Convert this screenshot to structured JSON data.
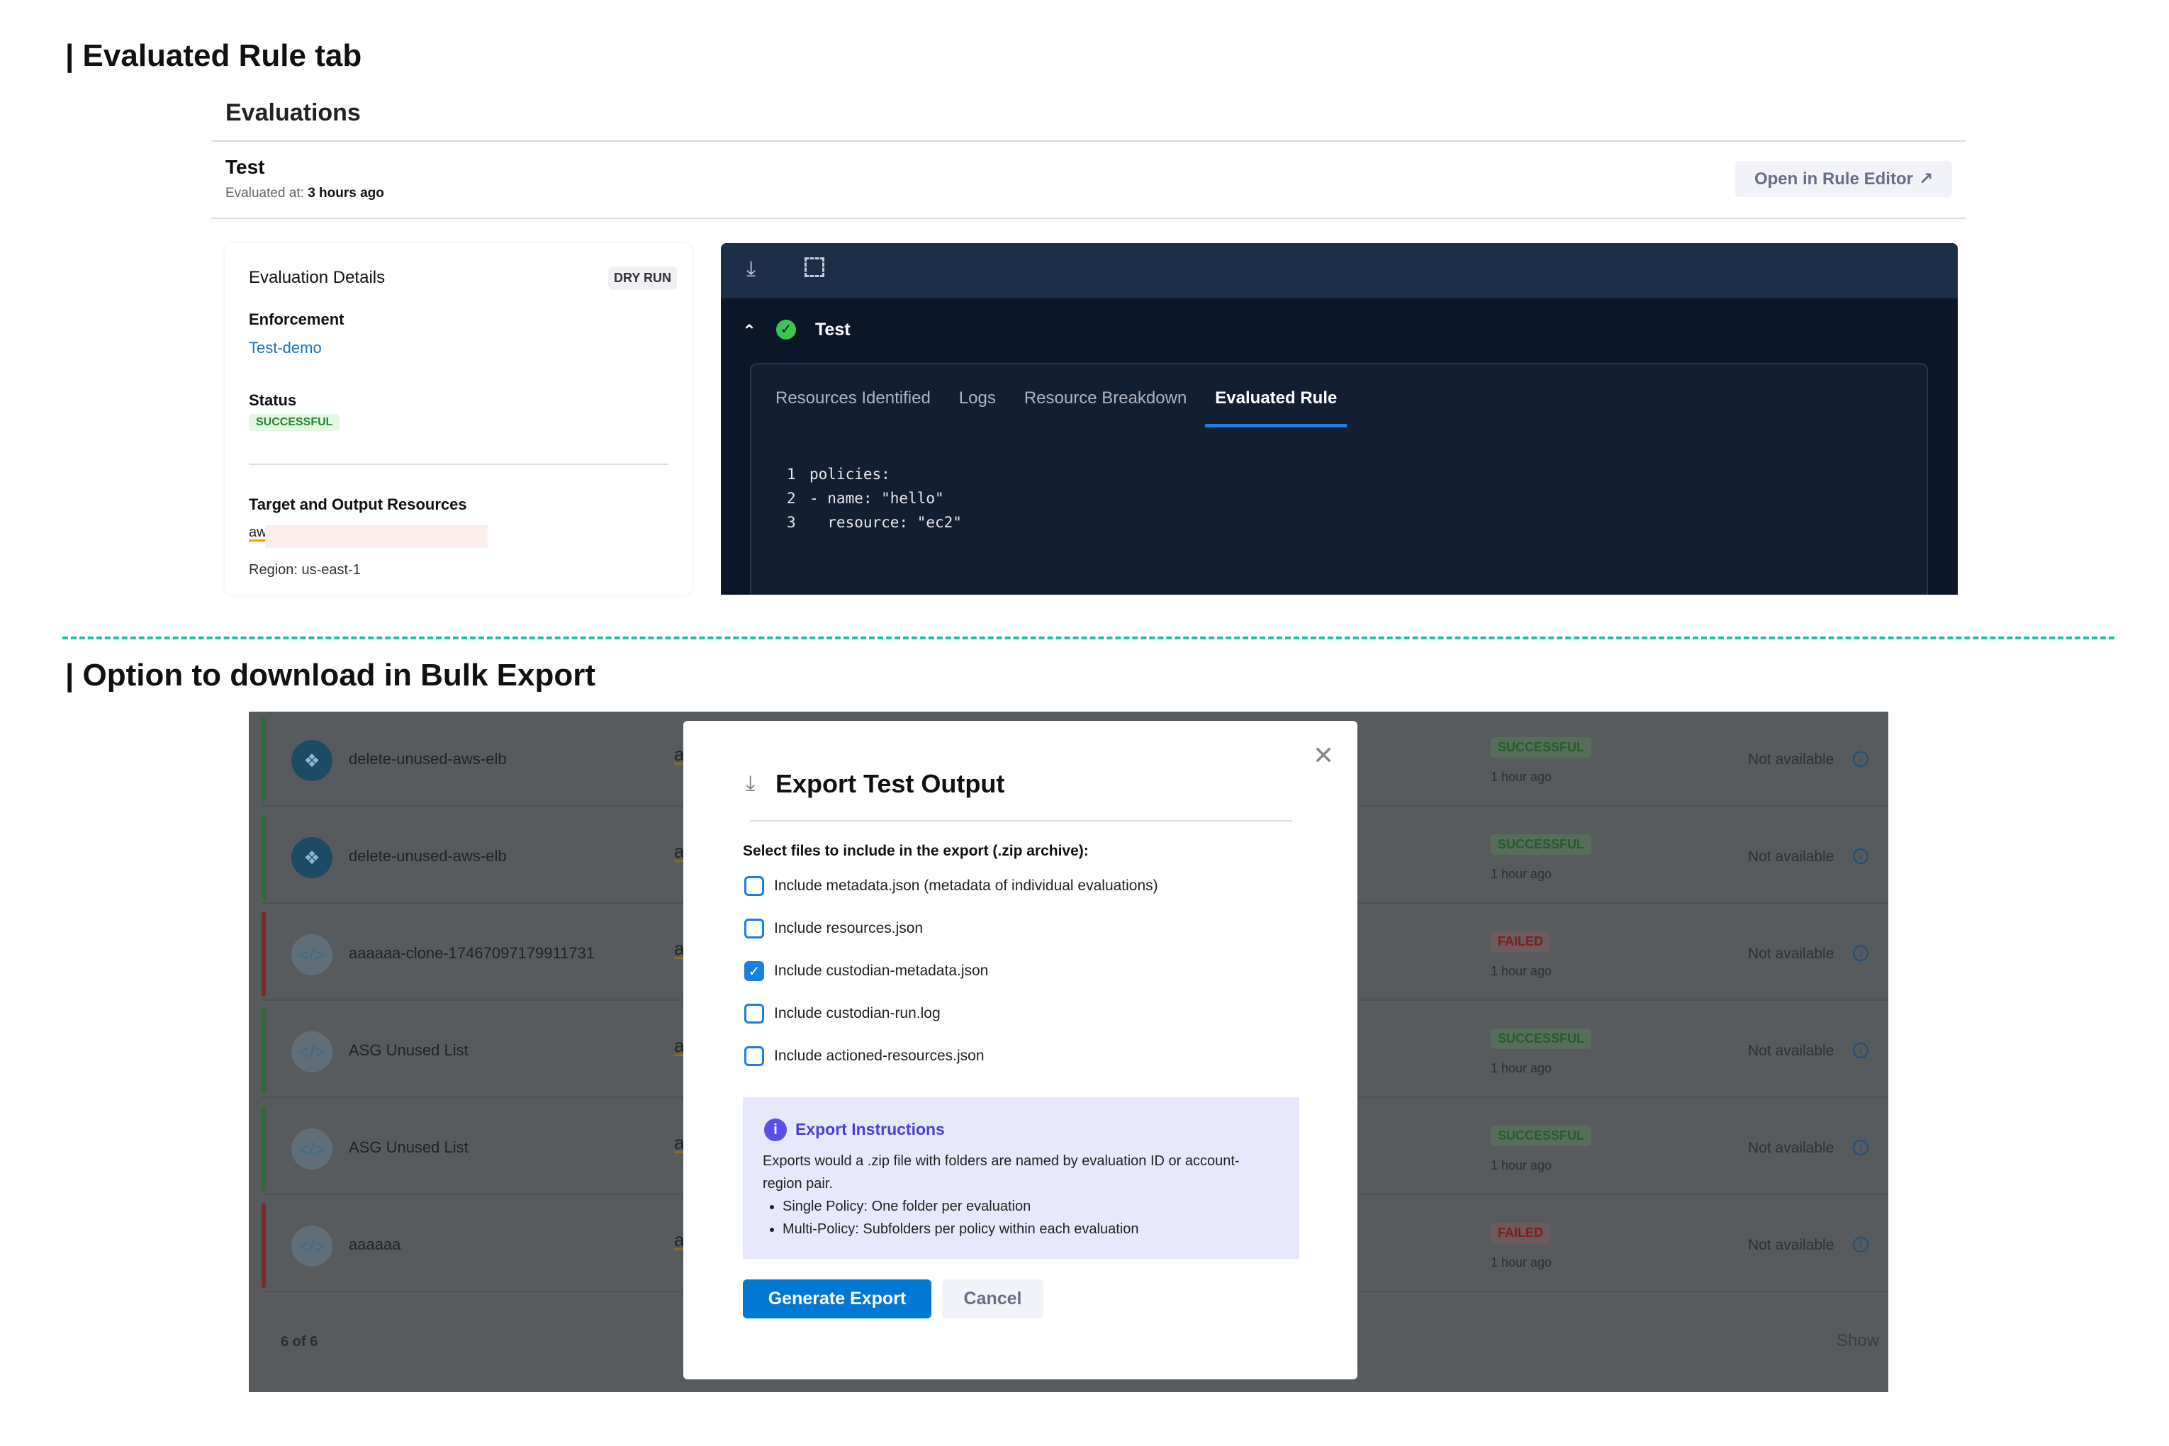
{
  "section1": {
    "title": "| Evaluated Rule tab"
  },
  "evaluations": {
    "heading": "Evaluations",
    "name": "Test",
    "evaluated_at_label": "Evaluated at:",
    "evaluated_at_value": "3 hours ago",
    "open_editor_label": "Open in Rule Editor"
  },
  "details": {
    "title": "Evaluation Details",
    "mode_badge": "DRY RUN",
    "enforcement_label": "Enforcement",
    "enforcement_value": "Test-demo",
    "status_label": "Status",
    "status_value": "SUCCESSFUL",
    "resources_label": "Target and Output Resources",
    "provider_logo": "aws",
    "region": "Region: us-east-1"
  },
  "output": {
    "title": "Test",
    "tabs": [
      "Resources Identified",
      "Logs",
      "Resource Breakdown",
      "Evaluated Rule"
    ],
    "active_tab": "Evaluated Rule",
    "code": [
      {
        "n": "1",
        "text": "policies:"
      },
      {
        "n": "2",
        "text": "- name: \"hello\""
      },
      {
        "n": "3",
        "text": "  resource: \"ec2\""
      }
    ]
  },
  "section2": {
    "title": "| Option to download in Bulk Export"
  },
  "list": {
    "rows": [
      {
        "name": "delete-unused-aws-elb",
        "provider": "aws",
        "status": "SUCCESSFUL",
        "time": "1 hour ago",
        "info": "Not available"
      },
      {
        "name": "delete-unused-aws-elb",
        "provider": "aws",
        "status": "SUCCESSFUL",
        "time": "1 hour ago",
        "info": "Not available"
      },
      {
        "name": "aaaaaa-clone-17467097179911731",
        "provider": "aws",
        "status": "FAILED",
        "time": "1 hour ago",
        "info": "Not available"
      },
      {
        "name": "ASG Unused List",
        "provider": "aws",
        "status": "SUCCESSFUL",
        "time": "1 hour ago",
        "info": "Not available"
      },
      {
        "name": "ASG Unused List",
        "provider": "aws",
        "status": "SUCCESSFUL",
        "time": "1 hour ago",
        "info": "Not available"
      },
      {
        "name": "aaaaaa",
        "provider": "aws",
        "status": "FAILED",
        "time": "1 hour ago",
        "info": "Not available"
      }
    ],
    "count": "6 of 6",
    "show_label": "Show"
  },
  "modal": {
    "title": "Export Test Output",
    "prompt": "Select files to include in the export (.zip archive):",
    "options": [
      {
        "label": "Include metadata.json (metadata of individual evaluations)",
        "checked": false
      },
      {
        "label": "Include resources.json",
        "checked": false
      },
      {
        "label": "Include custodian-metadata.json",
        "checked": true
      },
      {
        "label": "Include custodian-run.log",
        "checked": false
      },
      {
        "label": "Include actioned-resources.json",
        "checked": false
      }
    ],
    "info_title": "Export Instructions",
    "info_text": "Exports would a .zip file with folders are named by evaluation ID or account-region pair.",
    "info_bullets": [
      "Single Policy: One folder per evaluation",
      "Multi-Policy: Subfolders per policy within each evaluation"
    ],
    "generate_label": "Generate Export",
    "cancel_label": "Cancel"
  },
  "colors": {
    "accent": "#0278d5",
    "success": "#1e8a2c",
    "failed": "#c62828",
    "divider": "#1fbf9f",
    "info_bg": "#e8e8fc",
    "info_title": "#4b3fd6"
  }
}
